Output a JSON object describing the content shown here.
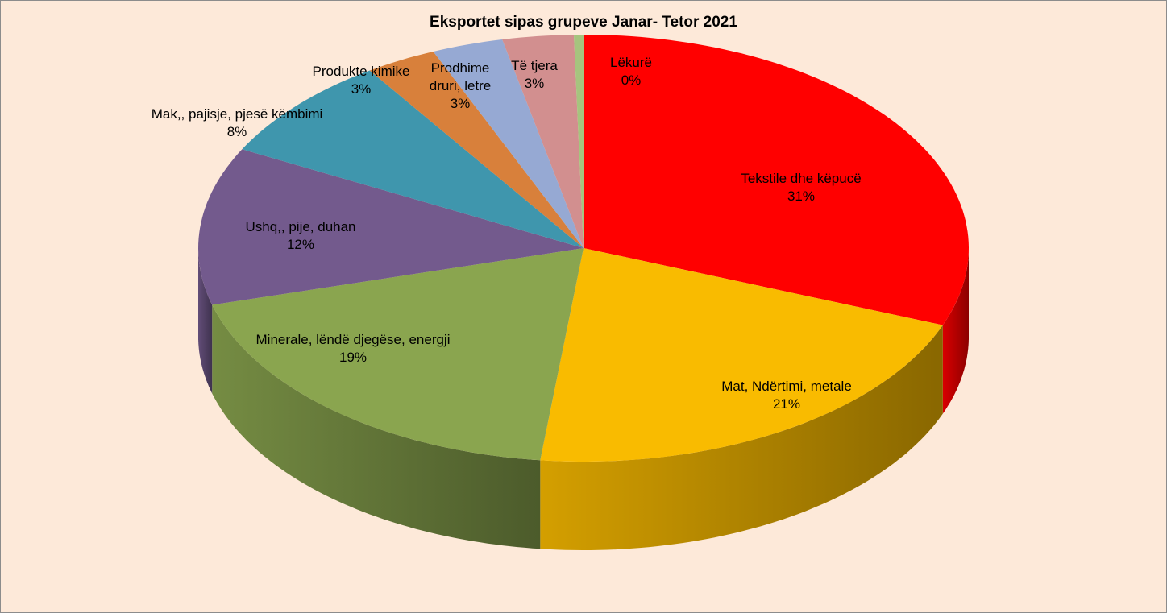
{
  "chart_data": {
    "type": "pie3d",
    "title": "Eksportet sipas grupeve Janar- Tetor 2021",
    "categories": [
      "Tekstile dhe këpucë",
      "Mat, Ndërtimi, metale",
      "Minerale, lëndë djegëse, energji",
      "Ushq,, pije, duhan",
      "Mak,, pajisje, pjesë këmbimi",
      "Produkte kimike",
      "Prodhime druri, letre",
      "Të tjera",
      "Lëkurë"
    ],
    "values": [
      31,
      21,
      19,
      12,
      8,
      3,
      3,
      3,
      0.4
    ],
    "value_labels": [
      "31%",
      "21%",
      "19%",
      "12%",
      "8%",
      "3%",
      "3%",
      "3%",
      "0%"
    ],
    "colors": [
      "#ff0000",
      "#f9bb00",
      "#8aa54f",
      "#735a8d",
      "#3f96ad",
      "#d8803b",
      "#96a9d3",
      "#d28f8f",
      "#a6c47e"
    ]
  }
}
